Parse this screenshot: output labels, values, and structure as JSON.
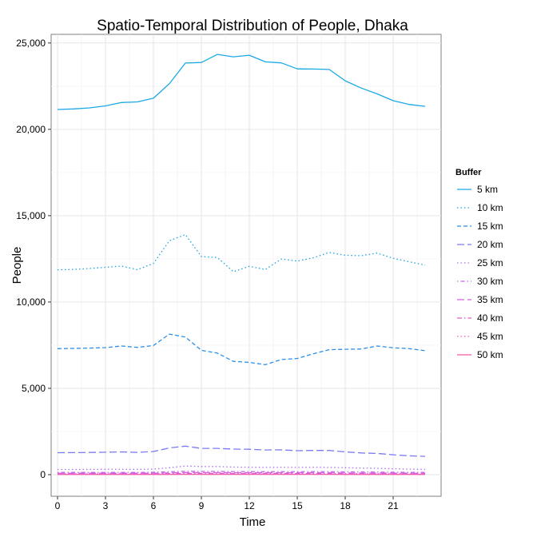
{
  "chart_data": {
    "type": "line",
    "title": "Spatio-Temporal Distribution of People, Dhaka",
    "xlabel": "Time",
    "ylabel": "People",
    "xlim": [
      -0.4,
      24.0
    ],
    "ylim": [
      -1250,
      25500
    ],
    "x_ticks": [
      0,
      3,
      6,
      9,
      12,
      15,
      18,
      21
    ],
    "x_tick_labels": [
      "0",
      "3",
      "6",
      "9",
      "12",
      "15",
      "18",
      "21"
    ],
    "y_ticks": [
      0,
      5000,
      10000,
      15000,
      20000,
      25000
    ],
    "y_tick_labels": [
      "0",
      "5,000",
      "10,000",
      "15,000",
      "20,000",
      "25,000"
    ],
    "grid": true,
    "legend": {
      "title": "Buffer",
      "position": "right"
    },
    "x": [
      0,
      1,
      2,
      3,
      4,
      5,
      6,
      7,
      8,
      9,
      10,
      11,
      12,
      13,
      14,
      15,
      16,
      17,
      18,
      19,
      20,
      21,
      22,
      23
    ],
    "series": [
      {
        "name": "5 km",
        "color": "#1aa9e6",
        "dash": "solid",
        "values": [
          21150,
          21180,
          21240,
          21360,
          21550,
          21590,
          21800,
          22650,
          23840,
          23870,
          24340,
          24200,
          24290,
          23910,
          23850,
          23500,
          23490,
          23470,
          22810,
          22390,
          22050,
          21660,
          21440,
          21330
        ]
      },
      {
        "name": "10 km",
        "color": "#1aa2e6",
        "dash": "dotted",
        "values": [
          11860,
          11890,
          11940,
          12010,
          12080,
          11870,
          12230,
          13550,
          13900,
          12630,
          12580,
          11750,
          12070,
          11880,
          12490,
          12370,
          12560,
          12870,
          12710,
          12680,
          12830,
          12530,
          12330,
          12140
        ]
      },
      {
        "name": "15 km",
        "color": "#2a8fe8",
        "dash": "dashed",
        "values": [
          7300,
          7310,
          7330,
          7360,
          7450,
          7370,
          7480,
          8140,
          7970,
          7200,
          7040,
          6560,
          6500,
          6370,
          6670,
          6730,
          7000,
          7240,
          7260,
          7280,
          7450,
          7350,
          7300,
          7180
        ]
      },
      {
        "name": "20 km",
        "color": "#7b7af0",
        "dash": "longdash",
        "values": [
          1270,
          1275,
          1285,
          1300,
          1320,
          1290,
          1340,
          1550,
          1650,
          1520,
          1520,
          1480,
          1470,
          1430,
          1440,
          1390,
          1400,
          1400,
          1320,
          1260,
          1230,
          1150,
          1090,
          1060
        ]
      },
      {
        "name": "25 km",
        "color": "#a96ff0",
        "dash": "dotted",
        "values": [
          300,
          302,
          305,
          310,
          315,
          305,
          320,
          400,
          500,
          470,
          470,
          440,
          430,
          420,
          430,
          420,
          430,
          420,
          400,
          380,
          370,
          340,
          320,
          300
        ]
      },
      {
        "name": "30 km",
        "color": "#c466ee",
        "dash": "dotdash",
        "values": [
          130,
          131,
          132,
          133,
          135,
          131,
          138,
          170,
          200,
          190,
          190,
          180,
          175,
          170,
          175,
          170,
          175,
          170,
          162,
          155,
          150,
          140,
          133,
          128
        ]
      },
      {
        "name": "35 km",
        "color": "#db5fdf",
        "dash": "longdash",
        "values": [
          80,
          81,
          82,
          82,
          83,
          81,
          85,
          100,
          120,
          115,
          115,
          110,
          108,
          105,
          108,
          104,
          106,
          104,
          98,
          94,
          92,
          86,
          82,
          79
        ]
      },
      {
        "name": "40 km",
        "color": "#e85bcc",
        "dash": "dashdot",
        "values": [
          50,
          50,
          51,
          51,
          52,
          50,
          53,
          62,
          75,
          72,
          72,
          69,
          68,
          66,
          67,
          65,
          66,
          65,
          61,
          59,
          57,
          54,
          51,
          49
        ]
      },
      {
        "name": "45 km",
        "color": "#f05ab9",
        "dash": "dotted",
        "values": [
          30,
          30,
          31,
          31,
          31,
          30,
          32,
          37,
          45,
          43,
          43,
          41,
          41,
          40,
          40,
          39,
          40,
          39,
          37,
          35,
          34,
          32,
          31,
          29
        ]
      },
      {
        "name": "50 km",
        "color": "#f35ba6",
        "dash": "solid",
        "values": [
          12,
          12,
          12,
          12,
          12,
          12,
          13,
          15,
          18,
          17,
          17,
          16,
          16,
          16,
          16,
          16,
          16,
          16,
          15,
          14,
          14,
          13,
          12,
          12
        ]
      }
    ]
  }
}
